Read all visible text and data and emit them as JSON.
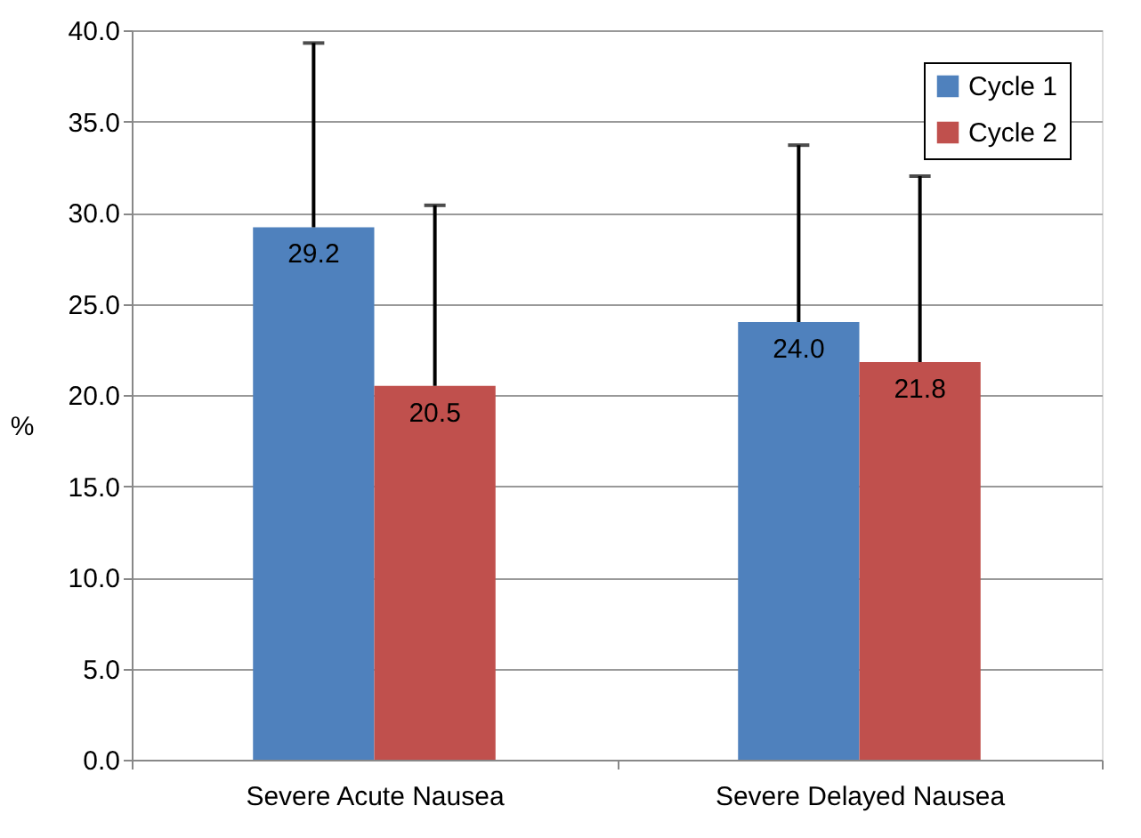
{
  "chart_data": {
    "type": "bar",
    "categories": [
      "Severe Acute Nausea",
      "Severe Delayed Nausea"
    ],
    "ylabel": "%",
    "series": [
      {
        "name": "Cycle 1",
        "color": "#4f81bd",
        "values": [
          29.2,
          24.0
        ],
        "value_labels": [
          "29.2",
          "24.0"
        ],
        "errors": [
          [
            29.2,
            39.3
          ],
          [
            24.0,
            33.7
          ]
        ]
      },
      {
        "name": "Cycle 2",
        "color": "#c0504d",
        "values": [
          20.5,
          21.8
        ],
        "value_labels": [
          "20.5",
          "21.8"
        ],
        "errors": [
          [
            20.5,
            30.4
          ],
          [
            21.8,
            32.0
          ]
        ]
      }
    ],
    "ylim": [
      0,
      40
    ],
    "yticks": [
      {
        "value": 0,
        "label": "0.0"
      },
      {
        "value": 5,
        "label": "5.0"
      },
      {
        "value": 10,
        "label": "10.0"
      },
      {
        "value": 15,
        "label": "15.0"
      },
      {
        "value": 20,
        "label": "20.0"
      },
      {
        "value": 25,
        "label": "25.0"
      },
      {
        "value": 30,
        "label": "30.0"
      },
      {
        "value": 35,
        "label": "35.0"
      },
      {
        "value": 40,
        "label": "40.0"
      }
    ],
    "grid": "y",
    "legend": "top right"
  }
}
